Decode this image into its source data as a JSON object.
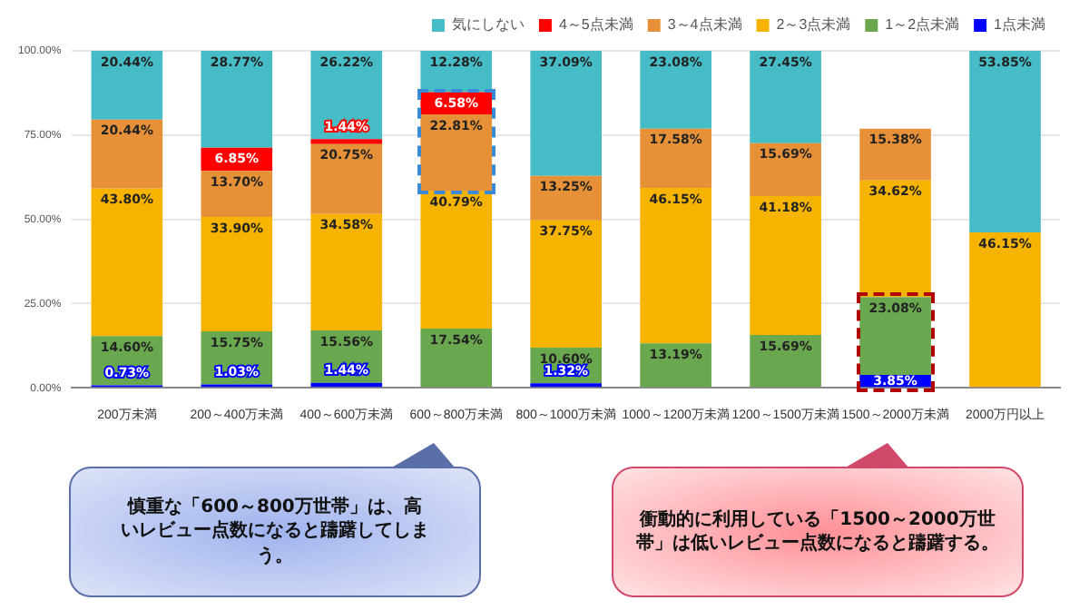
{
  "chart_data": {
    "type": "bar",
    "stacked": true,
    "legend": "top right",
    "grid": "y",
    "categories": [
      "200万未満",
      "200～400万未満",
      "400～600万未満",
      "600～800万未満",
      "800～1000万未満",
      "1000～1200万未満",
      "1200～1500万未満",
      "1500～2000万未満",
      "2000万円以上"
    ],
    "ylim": [
      0,
      100
    ],
    "yticks": [
      {
        "value": 0,
        "label": "0.00%"
      },
      {
        "value": 25,
        "label": "25.00%"
      },
      {
        "value": 50,
        "label": "50.00%"
      },
      {
        "value": 75,
        "label": "75.00%"
      },
      {
        "value": 100,
        "label": "100.00%"
      }
    ],
    "series": [
      {
        "name": "1点未満",
        "color": "#0000ff",
        "values": [
          0.73,
          1.03,
          1.44,
          null,
          1.32,
          null,
          null,
          3.85,
          null
        ],
        "value_labels": [
          "0.73%",
          "1.03%",
          "1.44%",
          null,
          "1.32%",
          null,
          null,
          "3.85%",
          null
        ]
      },
      {
        "name": "1～2点未満",
        "color": "#6aa84f",
        "values": [
          14.6,
          15.75,
          15.56,
          17.54,
          10.6,
          13.19,
          15.69,
          23.08,
          null
        ],
        "value_labels": [
          "14.60%",
          "15.75%",
          "15.56%",
          "17.54%",
          "10.60%",
          "13.19%",
          "15.69%",
          "23.08%",
          null
        ]
      },
      {
        "name": "2～3点未満",
        "color": "#f6b400",
        "values": [
          43.8,
          33.9,
          34.58,
          40.79,
          37.75,
          46.15,
          41.18,
          34.62,
          46.15
        ],
        "value_labels": [
          "43.80%",
          "33.90%",
          "34.58%",
          "40.79%",
          "37.75%",
          "46.15%",
          "41.18%",
          "34.62%",
          "46.15%"
        ]
      },
      {
        "name": "3～4点未満",
        "color": "#e69138",
        "values": [
          20.44,
          13.7,
          20.75,
          22.81,
          13.25,
          17.58,
          15.69,
          15.38,
          null
        ],
        "value_labels": [
          "20.44%",
          "13.70%",
          "20.75%",
          "22.81%",
          "13.25%",
          "17.58%",
          "15.69%",
          "15.38%",
          null
        ]
      },
      {
        "name": "4～5点未満",
        "color": "#ff0000",
        "values": [
          null,
          6.85,
          1.44,
          6.58,
          null,
          null,
          null,
          null,
          null
        ],
        "value_labels": [
          null,
          "6.85%",
          "1.44%",
          "6.58%",
          null,
          null,
          null,
          null,
          null
        ]
      },
      {
        "name": "気にしない",
        "color": "#46bdc6",
        "values": [
          20.44,
          28.77,
          26.22,
          12.28,
          37.09,
          23.08,
          27.45,
          null,
          53.85
        ],
        "value_labels": [
          "20.44%",
          "28.77%",
          "26.22%",
          "12.28%",
          "37.09%",
          "23.08%",
          "27.45%",
          null,
          "53.85%"
        ]
      }
    ],
    "annotations": [
      "慎重な「600～800万世帯」は、高いレビュー点数になると躊躇してしまう。",
      "衝動的に利用している「1500～2000万世帯」は低いレビュー点数になると躊躇する。"
    ]
  }
}
